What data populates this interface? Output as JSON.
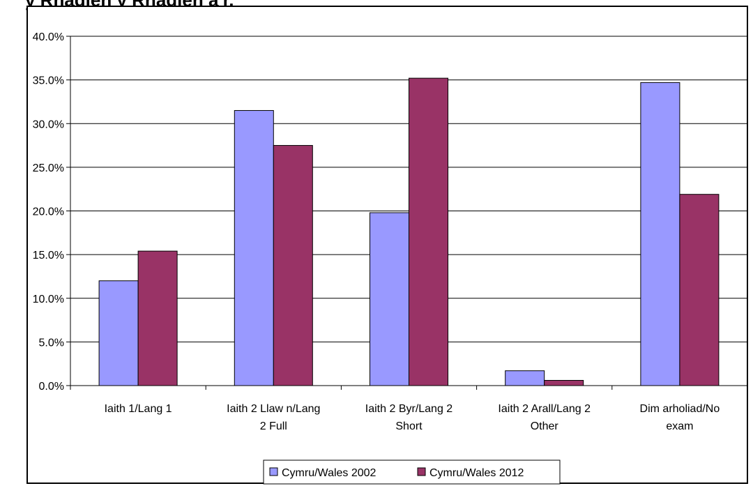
{
  "title_fragment": "y Rhaglen y Rhaglen a'r,",
  "chart_data": {
    "type": "bar",
    "title": "",
    "xlabel": "",
    "ylabel": "",
    "ylim": [
      0,
      40
    ],
    "y_ticks": [
      "0.0%",
      "5.0%",
      "10.0%",
      "15.0%",
      "20.0%",
      "25.0%",
      "30.0%",
      "35.0%",
      "40.0%"
    ],
    "grid": true,
    "legend_position": "bottom",
    "categories": [
      [
        "Iaith 1/Lang 1"
      ],
      [
        "Iaith 2 Llaw n/Lang",
        "2 Full"
      ],
      [
        "Iaith 2 Byr/Lang 2",
        "Short"
      ],
      [
        "Iaith 2 Arall/Lang 2",
        "Other"
      ],
      [
        "Dim arholiad/No",
        "exam"
      ]
    ],
    "series": [
      {
        "name": "Cymru/Wales  2002",
        "color": "#9999ff",
        "values": [
          12.0,
          31.5,
          19.8,
          1.7,
          34.7
        ]
      },
      {
        "name": "Cymru/Wales 2012",
        "color": "#993366",
        "values": [
          15.4,
          27.5,
          35.2,
          0.6,
          21.9
        ]
      }
    ]
  }
}
